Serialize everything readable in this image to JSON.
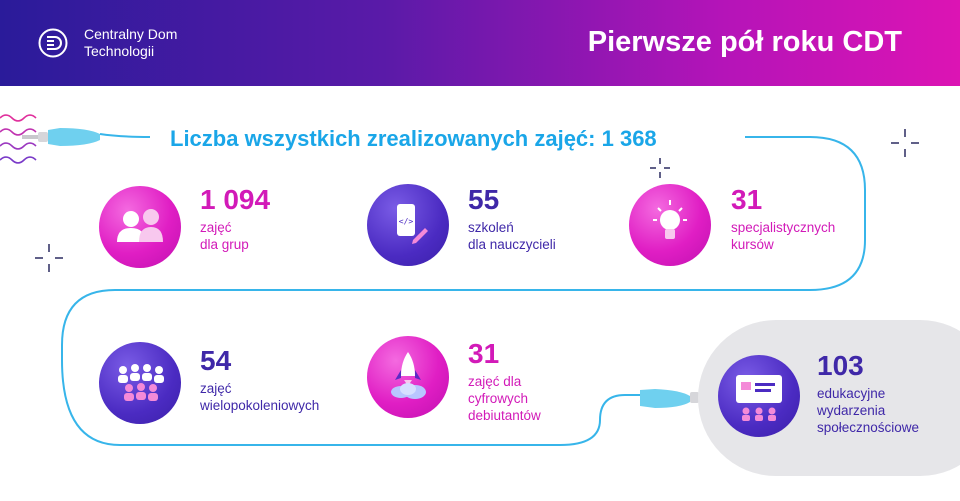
{
  "header": {
    "logo_line1": "Centralny Dom",
    "logo_line2": "Technologii",
    "title": "Pierwsze pół roku CDT"
  },
  "total": "Liczba wszystkich zrealizowanych zajęć: 1 368",
  "colors": {
    "pink": "#d21ab8",
    "purple": "#3f28a8",
    "cyan": "#1aa6e8"
  },
  "stats": [
    {
      "number": "1 094",
      "line1": "zajęć",
      "line2": "dla grup",
      "icon": "group-icon"
    },
    {
      "number": "55",
      "line1": "szkoleń",
      "line2": "dla nauczycieli",
      "icon": "phone-code-icon"
    },
    {
      "number": "31",
      "line1": "specjalistycznych",
      "line2": "kursów",
      "icon": "lightbulb-icon"
    },
    {
      "number": "54",
      "line1": "zajęć",
      "line2": "wielopokoleniowych",
      "icon": "crowd-icon"
    },
    {
      "number": "31",
      "line1": "zajęć dla",
      "line2": "cyfrowych",
      "line3": "debiutantów",
      "icon": "rocket-icon"
    },
    {
      "number": "103",
      "line1": "edukacyjne",
      "line2": "wydarzenia",
      "line3": "społecznościowe",
      "icon": "presentation-icon"
    }
  ]
}
